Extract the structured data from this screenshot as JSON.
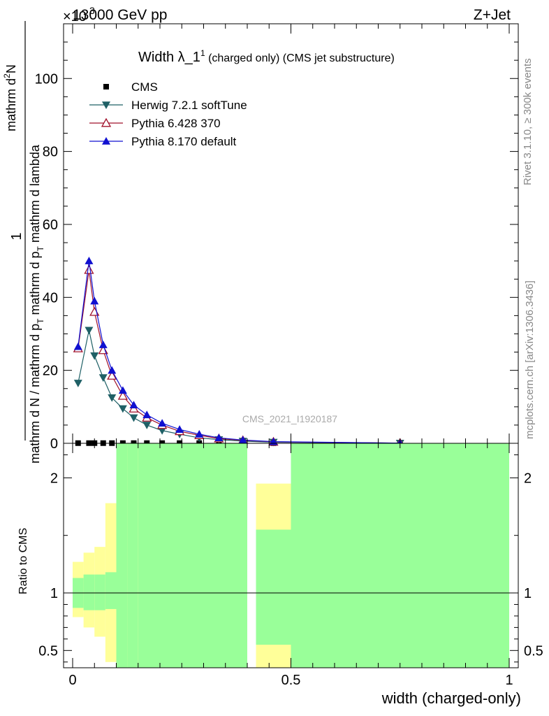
{
  "header": {
    "left": "13000 GeV pp",
    "right": "Z+Jet",
    "exponent": "×10",
    "exponent_power": "3"
  },
  "side_text": {
    "rivet": "Rivet 3.1.10, ≥ 300k events",
    "mcplots": "mcplots.cern.ch [arXiv:1306.3436]"
  },
  "title": {
    "main": "Width λ_1",
    "sup": "1",
    "sub": " (charged only) (CMS jet substructure)"
  },
  "watermark": "CMS_2021_I1920187",
  "ylabel_top": {
    "num": "1",
    "den": "mathrm d N / mathrm d p",
    "den_sub": "T",
    "den_mid": " mathrm d p",
    "den_mid_sub": "T",
    "den_tail": " mathrm d lambda",
    "frac_num": "mathrm d",
    "frac_num_sup": "2",
    "frac_num_tail": "N"
  },
  "ylabel_ratio": "Ratio to CMS",
  "xlabel": "width (charged-only)",
  "colors": {
    "herwig": "#1f6066",
    "pythia6": "#a0102a",
    "pythia8": "#1010d0",
    "band_green": "#99ff99",
    "band_yellow": "#ffff99"
  },
  "chart_data": [
    {
      "type": "line",
      "panel": "main",
      "ylim": [
        0,
        115
      ],
      "xlim": [
        -0.02,
        1.02
      ],
      "yticks": [
        "0",
        "20",
        "40",
        "60",
        "80",
        "100"
      ],
      "x": [
        0.0125,
        0.0375,
        0.05,
        0.07,
        0.09,
        0.115,
        0.14,
        0.17,
        0.205,
        0.245,
        0.29,
        0.335,
        0.39,
        0.46,
        0.75
      ],
      "series": [
        {
          "name": "CMS",
          "marker": "square",
          "values": [
            0.05,
            0.05,
            0.05,
            0.05,
            0.05,
            0.05,
            0.05,
            0.05,
            0.05,
            0.05,
            0.05,
            0.05,
            0.05,
            0.05,
            0.05
          ]
        },
        {
          "name": "Herwig 7.2.1 softTune",
          "marker": "tri-down",
          "values": [
            16.5,
            31,
            24,
            18,
            12.5,
            9.5,
            7,
            5,
            3.5,
            2.5,
            1.5,
            1.0,
            0.6,
            0.3,
            0.05
          ]
        },
        {
          "name": "Pythia 6.428 370",
          "marker": "tri-up-open",
          "values": [
            26,
            47.5,
            36,
            25.5,
            18.5,
            13,
            9.5,
            7,
            5,
            3.3,
            2.2,
            1.3,
            0.8,
            0.4,
            0.05
          ]
        },
        {
          "name": "Pythia 8.170 default",
          "marker": "tri-up",
          "values": [
            26.5,
            50,
            39,
            27,
            20,
            14.5,
            10.5,
            7.8,
            5.5,
            3.8,
            2.5,
            1.5,
            0.9,
            0.45,
            0.05
          ]
        }
      ]
    },
    {
      "type": "area",
      "panel": "ratio",
      "ylim": [
        0.35,
        2.3
      ],
      "xlim": [
        -0.02,
        1.02
      ],
      "yticks": [
        "0.5",
        "1",
        "2"
      ],
      "xticks": [
        "0",
        "0.5",
        "1"
      ],
      "reference": 1,
      "bins": [
        {
          "x0": 0.0,
          "x1": 0.025,
          "green": [
            0.87,
            1.13
          ],
          "yellow": [
            0.79,
            1.27
          ]
        },
        {
          "x0": 0.025,
          "x1": 0.05,
          "green": [
            0.85,
            1.16
          ],
          "yellow": [
            0.7,
            1.35
          ]
        },
        {
          "x0": 0.05,
          "x1": 0.075,
          "green": [
            0.85,
            1.16
          ],
          "yellow": [
            0.62,
            1.4
          ]
        },
        {
          "x0": 0.075,
          "x1": 0.1,
          "green": [
            0.86,
            1.18
          ],
          "yellow": [
            0.4,
            1.78
          ]
        },
        {
          "x0": 0.1,
          "x1": 0.125,
          "green": [
            0.35,
            2.3
          ],
          "yellow": [
            0.35,
            2.3
          ]
        },
        {
          "x0": 0.125,
          "x1": 0.15,
          "green": [
            0.35,
            2.3
          ],
          "yellow": [
            0.35,
            2.3
          ]
        },
        {
          "x0": 0.15,
          "x1": 0.4,
          "green": [
            0.35,
            2.3
          ],
          "yellow": [
            0.35,
            2.3
          ]
        },
        {
          "x0": 0.42,
          "x1": 0.5,
          "green": [
            0.55,
            1.55
          ],
          "yellow": [
            0.35,
            1.95
          ]
        },
        {
          "x0": 0.5,
          "x1": 1.0,
          "green": [
            0.35,
            2.3
          ],
          "yellow": [
            0.35,
            2.3
          ]
        }
      ]
    }
  ]
}
